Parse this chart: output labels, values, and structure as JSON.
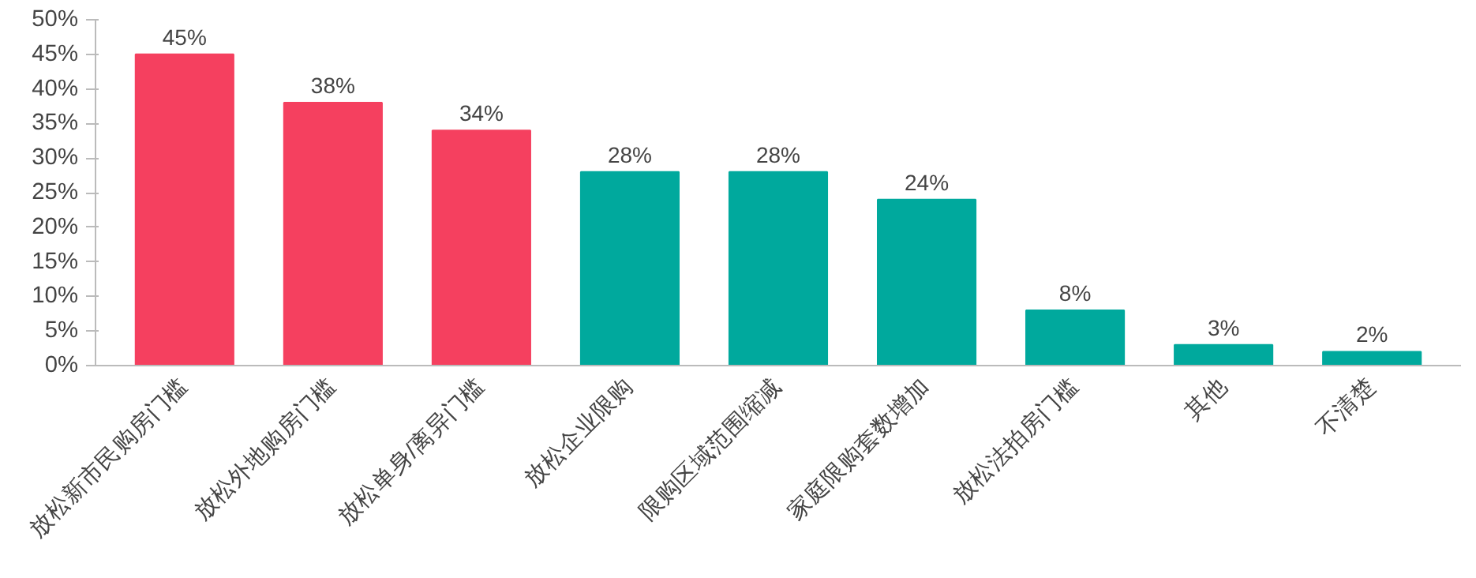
{
  "chart_data": {
    "type": "bar",
    "categories": [
      "放松新市民购房门槛",
      "放松外地购房门槛",
      "放松单身/离异门槛",
      "放松企业限购",
      "限购区域范围缩减",
      "家庭限购套数增加",
      "放松法拍房门槛",
      "其他",
      "不清楚"
    ],
    "values": [
      45,
      38,
      34,
      28,
      28,
      24,
      8,
      3,
      2
    ],
    "value_labels": [
      "45%",
      "38%",
      "34%",
      "28%",
      "28%",
      "24%",
      "8%",
      "3%",
      "2%"
    ],
    "colors": [
      "#f5405f",
      "#f5405f",
      "#f5405f",
      "#00a99d",
      "#00a99d",
      "#00a99d",
      "#00a99d",
      "#00a99d",
      "#00a99d"
    ],
    "ylim": [
      0,
      50
    ],
    "yticks": [
      {
        "value": 0,
        "label": "0%"
      },
      {
        "value": 5,
        "label": "5%"
      },
      {
        "value": 10,
        "label": "10%"
      },
      {
        "value": 15,
        "label": "15%"
      },
      {
        "value": 20,
        "label": "20%"
      },
      {
        "value": 25,
        "label": "25%"
      },
      {
        "value": 30,
        "label": "30%"
      },
      {
        "value": 35,
        "label": "35%"
      },
      {
        "value": 40,
        "label": "40%"
      },
      {
        "value": 45,
        "label": "45%"
      },
      {
        "value": 50,
        "label": "50%"
      }
    ],
    "grid": false
  }
}
